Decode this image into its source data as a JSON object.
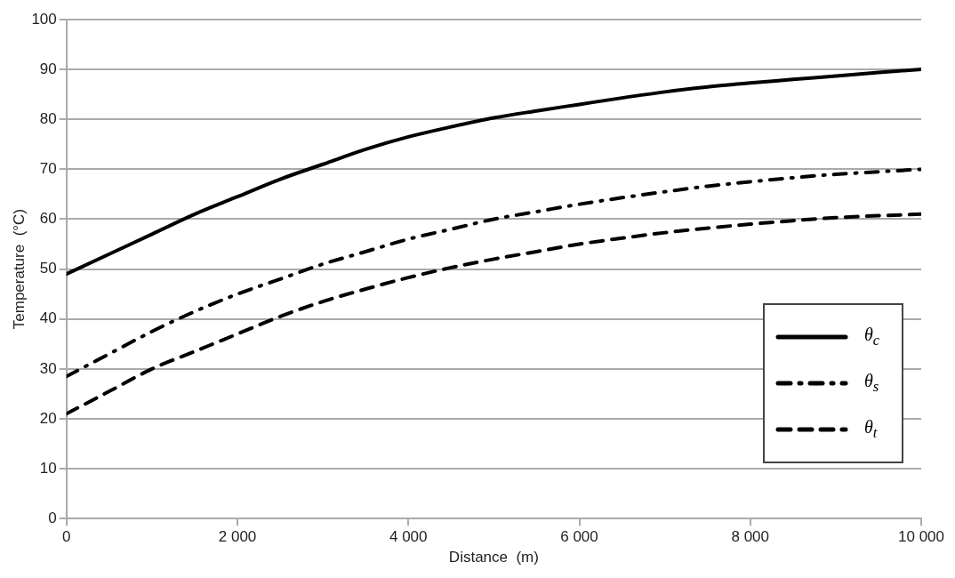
{
  "chart_data": {
    "type": "line",
    "xlabel": "Distance  (m)",
    "ylabel": "Temperature  (°C)",
    "x": [
      0,
      500,
      1000,
      1500,
      2000,
      2500,
      3000,
      3500,
      4000,
      4500,
      5000,
      5500,
      6000,
      6500,
      7000,
      7500,
      8000,
      8500,
      9000,
      9500,
      10000
    ],
    "series": [
      {
        "name": "θ$_{c}$",
        "color": "#000000",
        "line_style": "solid",
        "values": [
          49,
          53,
          57,
          61,
          64.5,
          68,
          71,
          74,
          76.5,
          78.5,
          80.3,
          81.7,
          83,
          84.3,
          85.5,
          86.5,
          87.3,
          88,
          88.7,
          89.4,
          90
        ]
      },
      {
        "name": "θ$_{s}$",
        "color": "#000000",
        "line_style": "dashdot",
        "values": [
          28.5,
          33,
          37.5,
          41.5,
          45,
          48,
          51,
          53.5,
          56,
          58,
          60,
          61.5,
          63,
          64.3,
          65.5,
          66.6,
          67.5,
          68.3,
          69,
          69.5,
          70
        ]
      },
      {
        "name": "θ$_{t}$",
        "color": "#000000",
        "line_style": "dashed",
        "values": [
          21,
          25.5,
          30,
          33.5,
          37,
          40.5,
          43.5,
          46,
          48.3,
          50.3,
          52,
          53.5,
          55,
          56.2,
          57.3,
          58.2,
          59,
          59.7,
          60.3,
          60.7,
          61
        ]
      }
    ],
    "xlim": [
      0,
      10000
    ],
    "xticks": [
      0,
      {
        "value": 2000,
        "label": "2 000"
      },
      {
        "value": 4000,
        "label": "4 000"
      },
      {
        "value": 6000,
        "label": "6 000"
      },
      {
        "value": 8000,
        "label": "8 000"
      },
      {
        "value": 10000,
        "label": "10 000"
      }
    ],
    "ylim": [
      0,
      100
    ],
    "yticks": [
      0,
      10,
      20,
      30,
      40,
      50,
      60,
      70,
      80,
      90,
      100
    ],
    "grid": "y",
    "legend": "bottom right",
    "marker": "none"
  }
}
